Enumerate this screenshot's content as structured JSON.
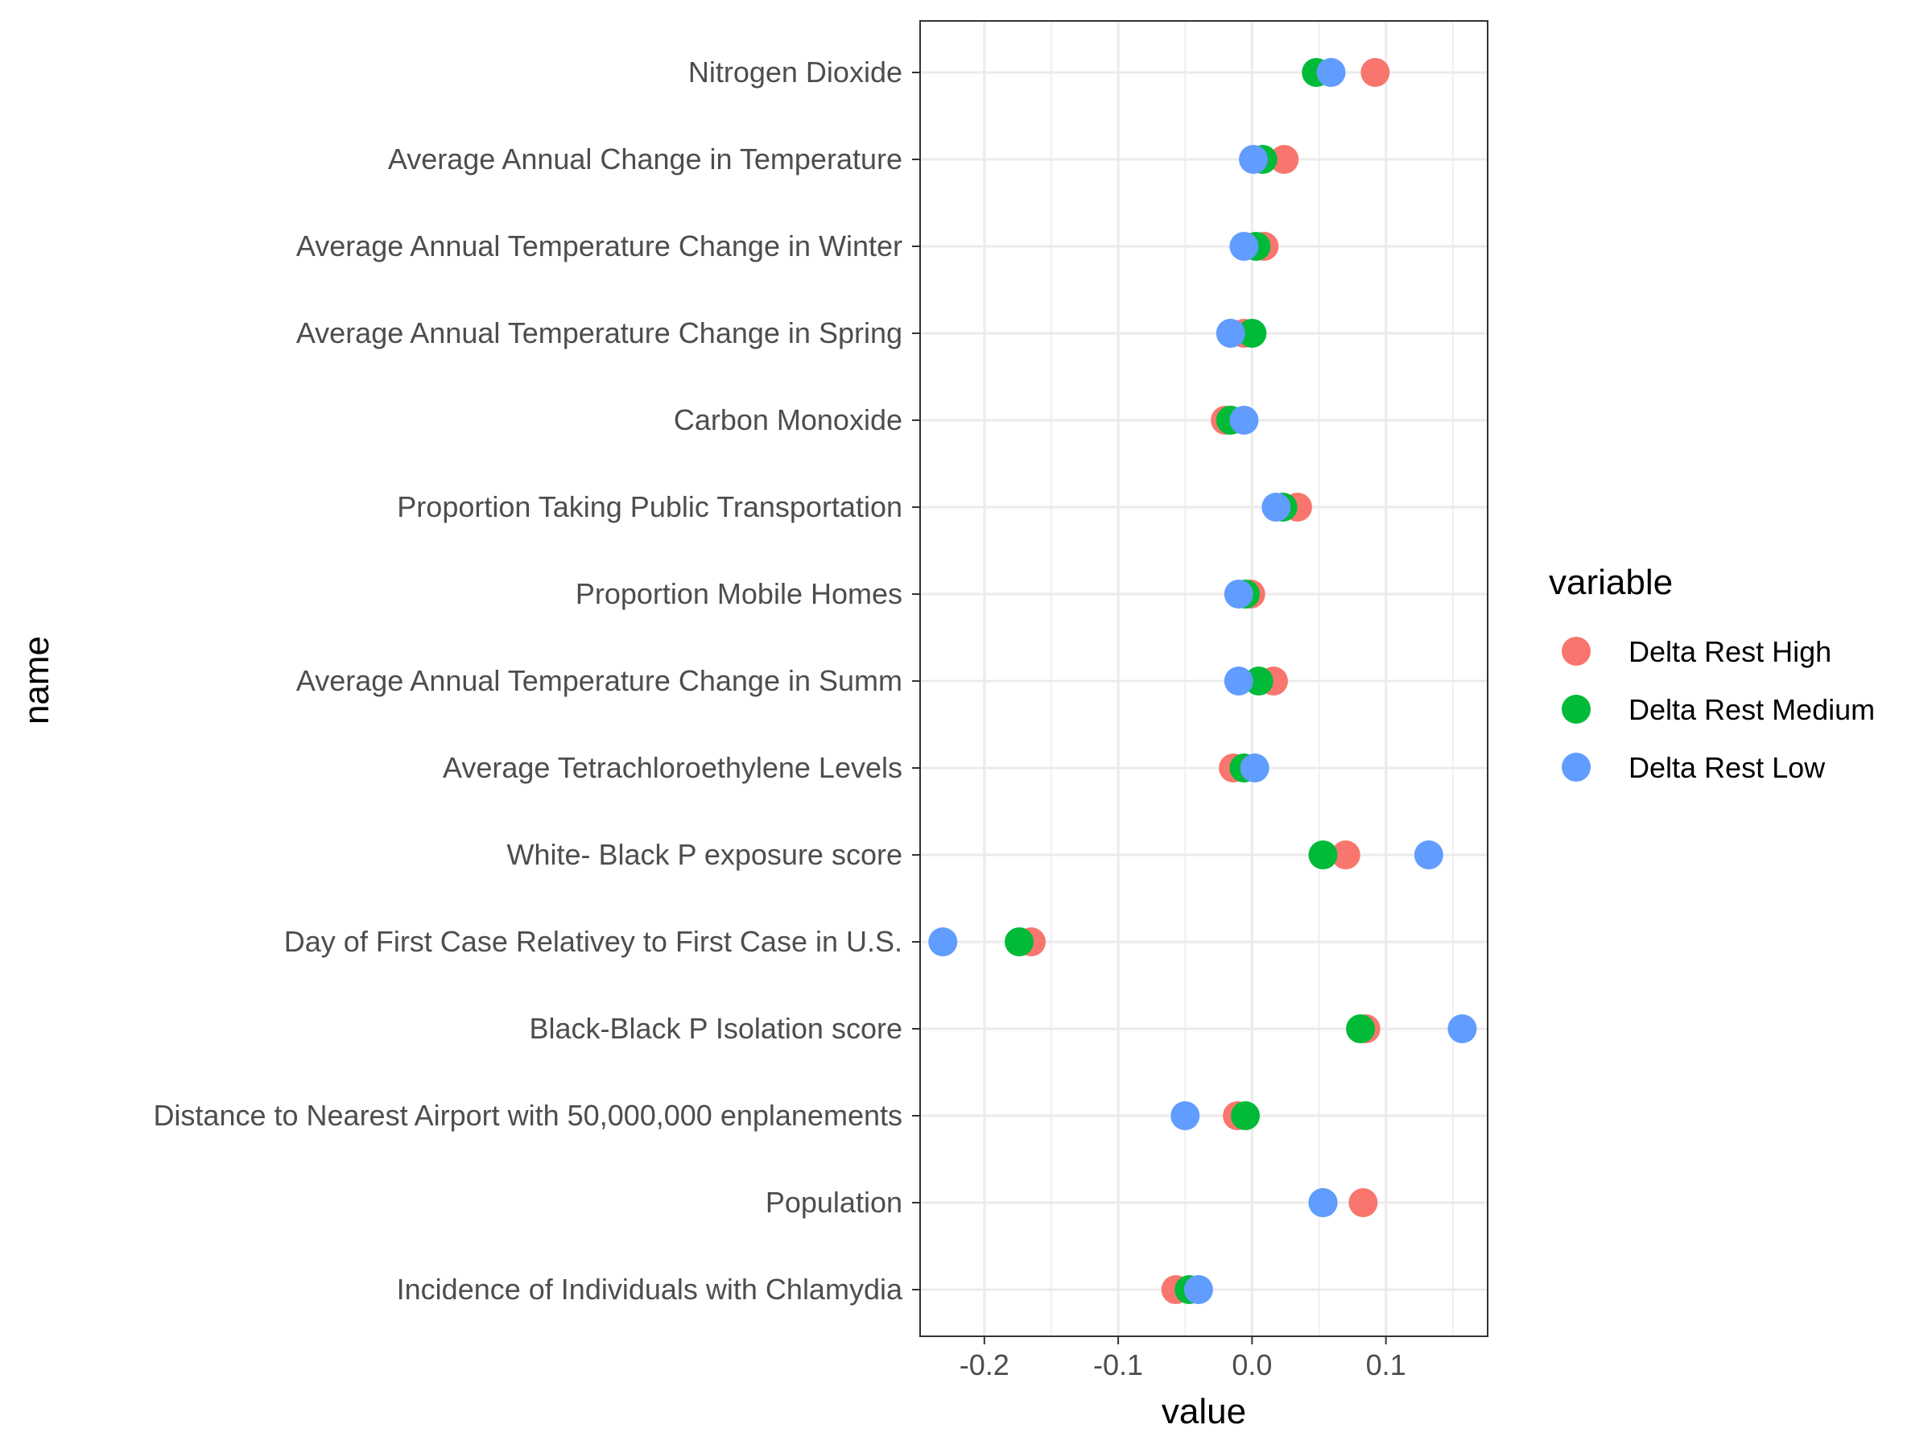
{
  "chart_data": {
    "type": "scatter",
    "title": "",
    "xlabel": "value",
    "ylabel": "name",
    "xlim": [
      -0.248,
      0.176
    ],
    "xticks": [
      -0.2,
      -0.1,
      0.0,
      0.1
    ],
    "xtick_labels": [
      "-0.2",
      "-0.1",
      "0.0",
      "0.1"
    ],
    "grid": true,
    "legend_position": "right",
    "legend_title": "variable",
    "categories": [
      "Nitrogen Dioxide",
      "Average Annual Change in Temperature",
      "Average Annual Temperature Change in Winter",
      "Average Annual Temperature Change in Spring",
      "Carbon Monoxide",
      "Proportion Taking Public Transportation",
      "Proportion Mobile Homes",
      "Average Annual Temperature Change in Summ",
      "Average Tetrachloroethylene Levels",
      "White- Black P exposure score",
      "Day of First Case Relativey to First Case in U.S.",
      "Black-Black P Isolation score",
      "Distance to Nearest Airport with 50,000,000 enplanements",
      "Population",
      "Incidence of Individuals with Chlamydia"
    ],
    "series": [
      {
        "name": "Delta Rest High",
        "color": "#F8766D",
        "values": [
          0.092,
          0.024,
          0.009,
          -0.006,
          -0.02,
          0.034,
          -0.001,
          0.016,
          -0.014,
          0.07,
          -0.165,
          0.085,
          -0.011,
          0.083,
          -0.057
        ]
      },
      {
        "name": "Delta Rest Medium",
        "color": "#00BA38",
        "values": [
          0.048,
          0.008,
          0.003,
          0.0,
          -0.016,
          0.023,
          -0.005,
          0.005,
          -0.006,
          0.053,
          -0.174,
          0.081,
          -0.005,
          0.053,
          -0.047
        ]
      },
      {
        "name": "Delta Rest Low",
        "color": "#619CFF",
        "values": [
          0.059,
          0.001,
          -0.006,
          -0.016,
          -0.006,
          0.018,
          -0.01,
          -0.01,
          0.002,
          0.132,
          -0.231,
          0.157,
          -0.05,
          0.053,
          -0.04
        ]
      }
    ]
  }
}
